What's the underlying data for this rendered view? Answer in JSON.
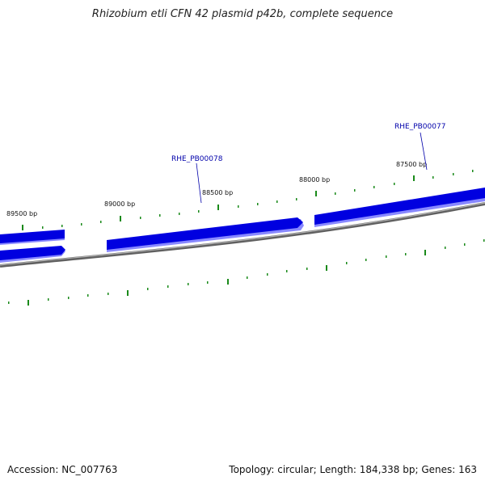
{
  "title": "Rhizobium etli CFN 42 plasmid p42b, complete sequence",
  "footer": {
    "accession": "Accession: NC_007763",
    "stats": "Topology: circular; Length: 184,338 bp; Genes: 163"
  },
  "ticks": [
    {
      "label": "89500 bp"
    },
    {
      "label": "89000 bp"
    },
    {
      "label": "88500 bp"
    },
    {
      "label": "88000 bp"
    },
    {
      "label": "87500 bp"
    }
  ],
  "genes": [
    {
      "label": "RHE_PB00078"
    },
    {
      "label": "RHE_PB00077"
    }
  ],
  "colors": {
    "gene": "#0000e0",
    "gene_shadow": "#8888ff",
    "backbone": "#808080",
    "tick": "#1a8a1a"
  }
}
